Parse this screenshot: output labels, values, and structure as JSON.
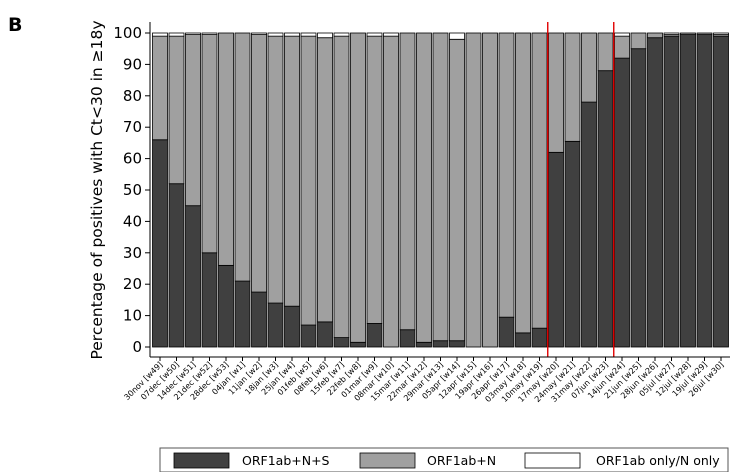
{
  "panel_label": "B",
  "colors": {
    "orf1ab_n_s": "#404040",
    "orf1ab_n": "#a0a0a0",
    "orf1ab_only": "#ffffff",
    "edge": "#000000",
    "vline": "#e00000"
  },
  "chart_data": {
    "type": "bar",
    "stacked": true,
    "title": "",
    "xlabel": "",
    "ylabel": "Percentage of positives with Ct<30 in ≥18y",
    "ylim": [
      0,
      100
    ],
    "yticks": [
      0,
      10,
      20,
      30,
      40,
      50,
      60,
      70,
      80,
      90,
      100
    ],
    "grid": false,
    "legend_position": "bottom",
    "categories": [
      "30nov [w49]",
      "07dec [w50]",
      "14dec [w51]",
      "21dec [w52]",
      "28dec [w53]",
      "04jan [w1]",
      "11jan [w2]",
      "18jan [w3]",
      "25jan [w4]",
      "01feb [w5]",
      "08feb [w6]",
      "15feb [w7]",
      "22feb [w8]",
      "01mar [w9]",
      "08mar [w10]",
      "15mar [w11]",
      "22mar [w12]",
      "29mar [w13]",
      "05apr [w14]",
      "12apr [w15]",
      "19apr [w16]",
      "26apr [w17]",
      "03may [w18]",
      "10may [w19]",
      "17may [w20]",
      "24may [w21]",
      "31may [w22]",
      "07jun [w23]",
      "14jun [w24]",
      "21jun [w25]",
      "28jun [w26]",
      "05jul [w27]",
      "12jul [w28]",
      "19jul [w29]",
      "26jul [w30]"
    ],
    "series": [
      {
        "name": "ORF1ab+N+S",
        "values": [
          66,
          52,
          45,
          30,
          26,
          21,
          17.5,
          14,
          13,
          7,
          8,
          3,
          1.5,
          7.5,
          0,
          5.5,
          1.5,
          2,
          2,
          0,
          0,
          9.5,
          4.5,
          6,
          62,
          65.5,
          78,
          88,
          92,
          95,
          98.5,
          99,
          99.5,
          99.5,
          99
        ]
      },
      {
        "name": "ORF1ab+N",
        "values": [
          33,
          47,
          54.5,
          69.5,
          74,
          79,
          82,
          85,
          86,
          92,
          90.5,
          96,
          98.5,
          91.5,
          99,
          94.5,
          98.5,
          98,
          96,
          100,
          100,
          90.5,
          95.5,
          94,
          38,
          34.5,
          22,
          12,
          7,
          5,
          1.5,
          0.5,
          0.5,
          0.5,
          0.5
        ]
      },
      {
        "name": "ORF1ab only/N only",
        "values": [
          1,
          1,
          0.5,
          0.5,
          0,
          0,
          0.5,
          1,
          1,
          1,
          1.5,
          1,
          0,
          1,
          1,
          0,
          0,
          0,
          2,
          0,
          0,
          0,
          0,
          0,
          0,
          0,
          0,
          0,
          1,
          0,
          0,
          0.5,
          0,
          0,
          0.5
        ]
      }
    ],
    "vertical_lines_after": [
      "17may [w20]",
      "14jun [w24]"
    ],
    "vertical_line_category_index": [
      24,
      28
    ]
  }
}
